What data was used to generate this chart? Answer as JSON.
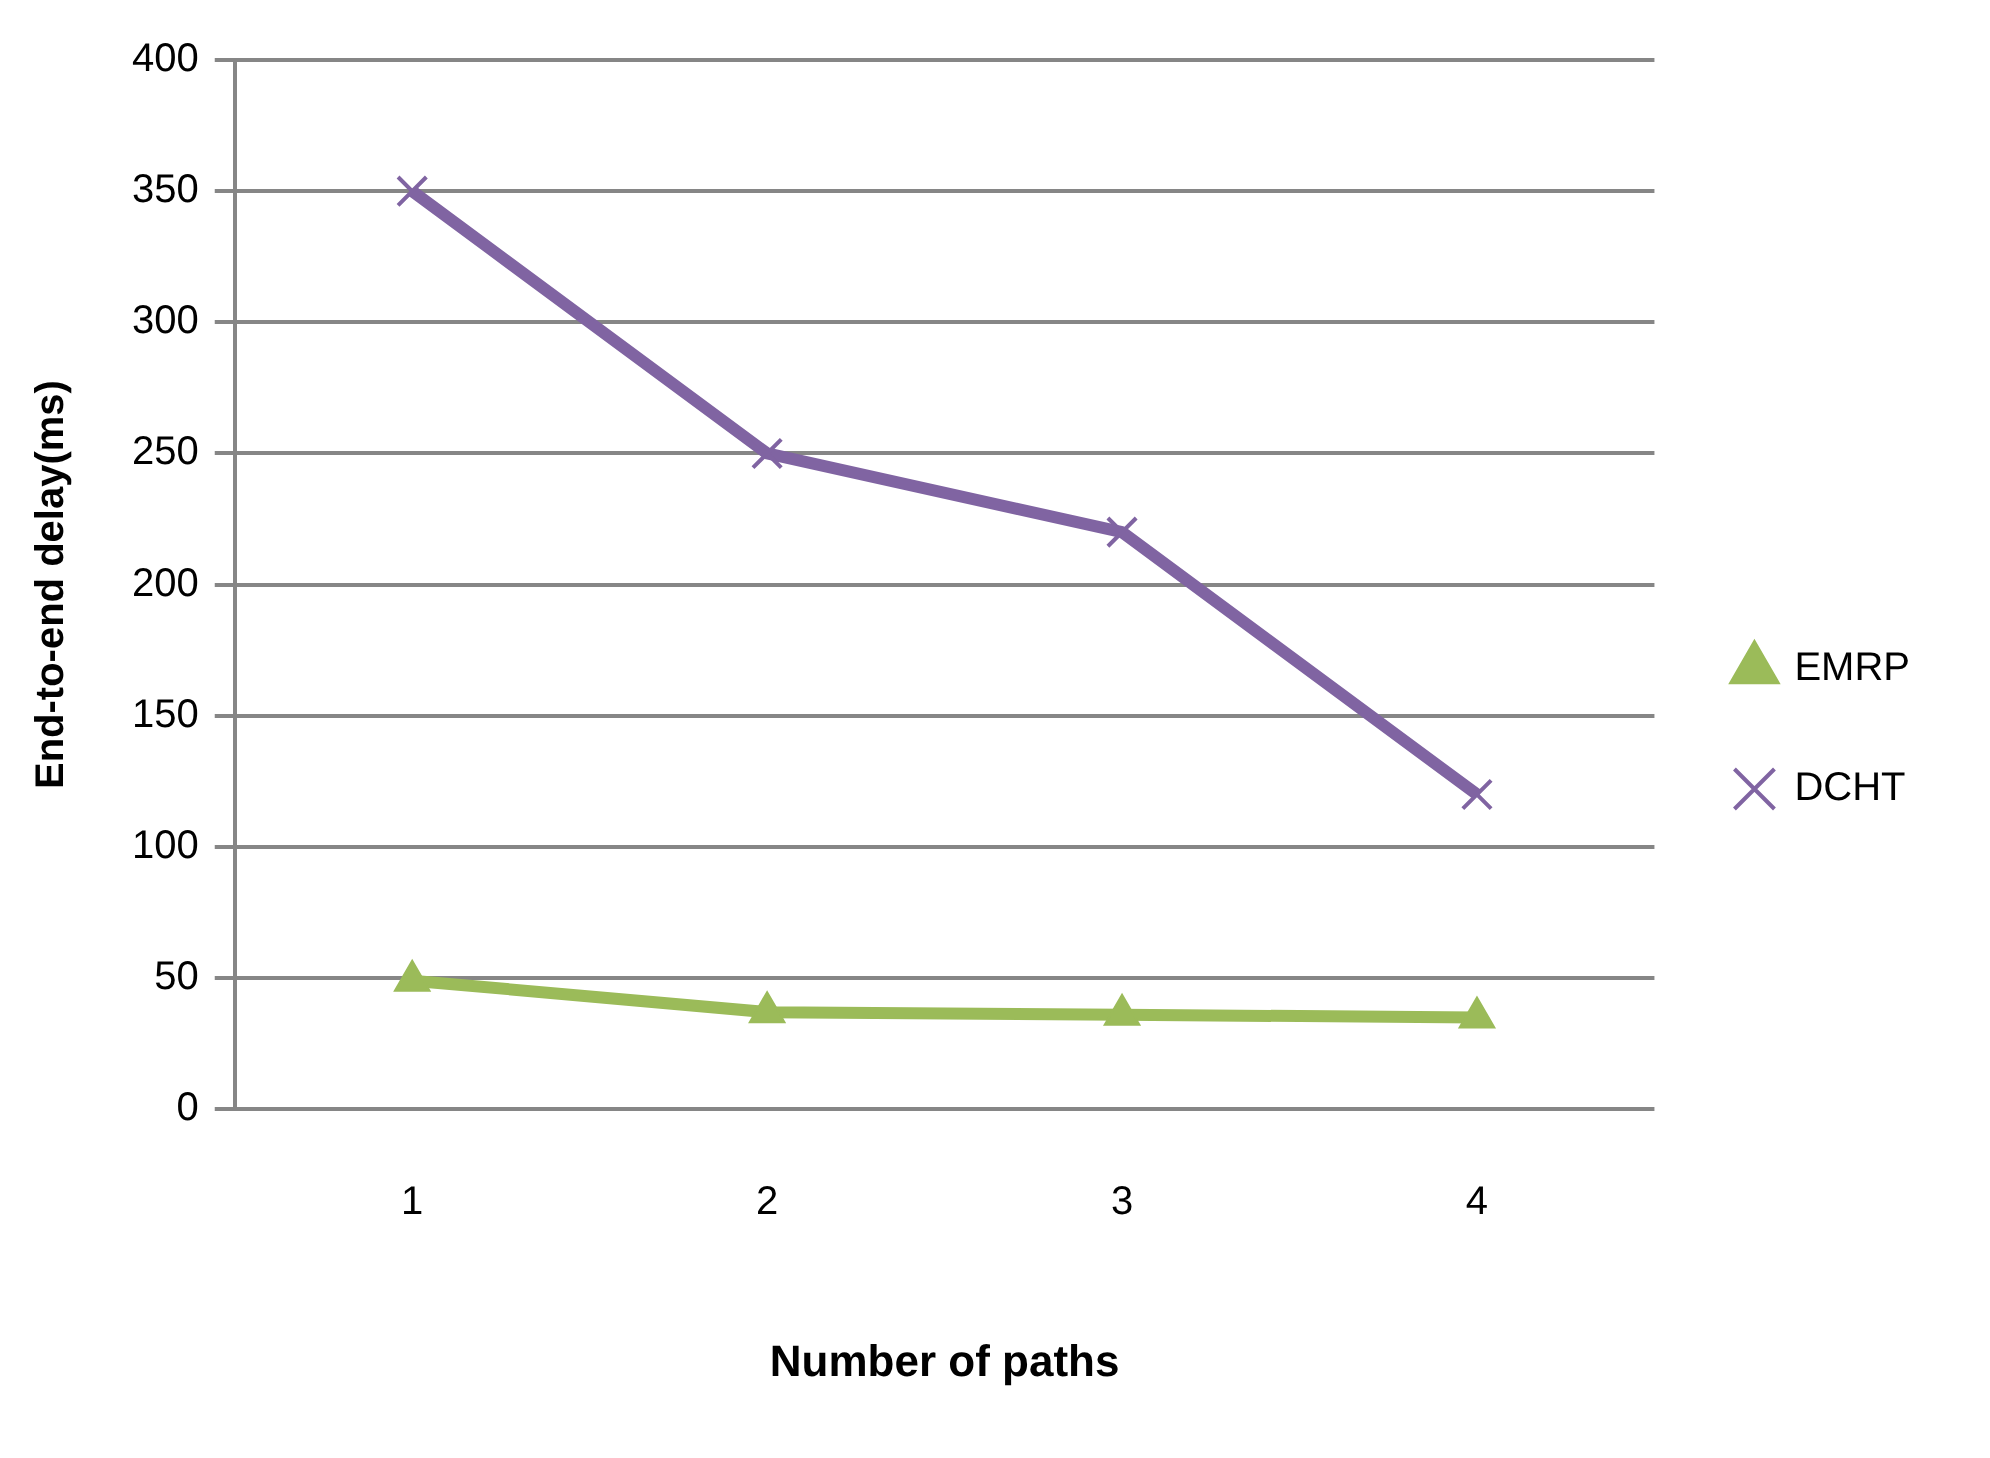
{
  "chart_data": {
    "type": "line",
    "xlabel": "Number of paths",
    "ylabel": "End-to-end delay(ms)",
    "categories": [
      "1",
      "2",
      "3",
      "4"
    ],
    "series": [
      {
        "name": "EMRP",
        "color": "#9bbb59",
        "marker": "triangle",
        "values": [
          49,
          37,
          36,
          35
        ]
      },
      {
        "name": "DCHT",
        "color": "#8064a2",
        "marker": "cross",
        "values": [
          350,
          250,
          220,
          120
        ]
      }
    ],
    "ylim": [
      0,
      400
    ],
    "yticks": [
      0,
      50,
      100,
      150,
      200,
      250,
      300,
      350,
      400
    ],
    "grid": "y",
    "legend": "right",
    "line_style": "solid"
  }
}
